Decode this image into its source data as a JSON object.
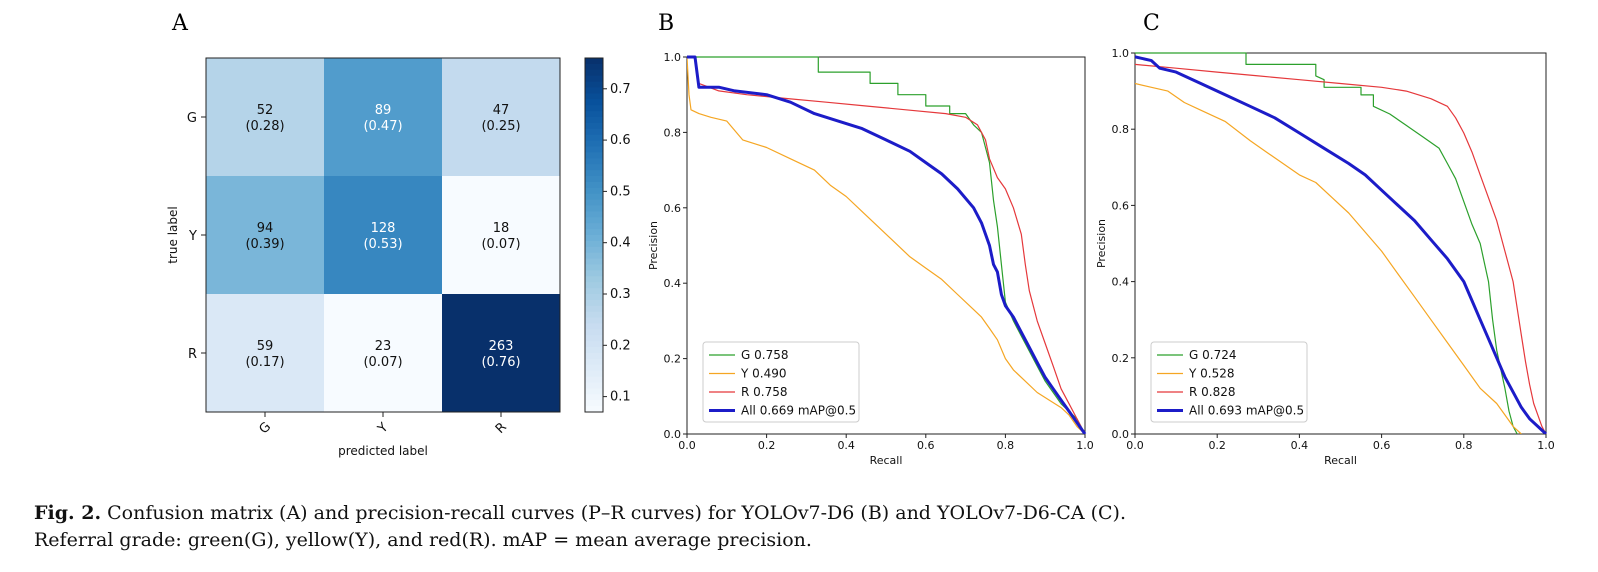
{
  "panels": {
    "a": "A",
    "b": "B",
    "c": "C"
  },
  "caption": {
    "label": "Fig. 2.",
    "text1": "Confusion matrix (A) and precision-recall curves (P–R curves) for YOLOv7-D6 (B) and YOLOv7-D6-CA (C).",
    "text2": "Referral grade: green(G), yellow(Y), and red(R). mAP = mean average precision."
  },
  "chart_data": [
    {
      "type": "heatmap",
      "panel": "A",
      "xlabel": "predicted label",
      "ylabel": "true label",
      "x_categories": [
        "G",
        "Y",
        "R"
      ],
      "y_categories": [
        "G",
        "Y",
        "R"
      ],
      "counts": [
        [
          52,
          89,
          47
        ],
        [
          94,
          128,
          18
        ],
        [
          59,
          23,
          263
        ]
      ],
      "fractions": [
        [
          "0.28",
          "0.47",
          "0.25"
        ],
        [
          "0.39",
          "0.53",
          "0.07"
        ],
        [
          "0.17",
          "0.07",
          "0.76"
        ]
      ],
      "colorbar": {
        "min": 0.07,
        "max": 0.76,
        "ticks": [
          "0.1",
          "0.2",
          "0.3",
          "0.4",
          "0.5",
          "0.6",
          "0.7"
        ],
        "colormap": "Blues"
      }
    },
    {
      "type": "line",
      "panel": "B",
      "xlabel": "Recall",
      "ylabel": "Precision",
      "xlim": [
        0,
        1
      ],
      "ylim": [
        0,
        1
      ],
      "x_ticks": [
        "0.0",
        "0.2",
        "0.4",
        "0.6",
        "0.8",
        "1.0"
      ],
      "y_ticks": [
        "0.0",
        "0.2",
        "0.4",
        "0.6",
        "0.8",
        "1.0"
      ],
      "legend_position": "bottom-left",
      "series": [
        {
          "name": "G 0.758",
          "color": "#2ca02c",
          "width": 1.2,
          "points": [
            [
              0,
              1.0
            ],
            [
              0.33,
              1.0
            ],
            [
              0.33,
              0.96
            ],
            [
              0.46,
              0.96
            ],
            [
              0.46,
              0.93
            ],
            [
              0.53,
              0.93
            ],
            [
              0.53,
              0.9
            ],
            [
              0.6,
              0.9
            ],
            [
              0.6,
              0.87
            ],
            [
              0.66,
              0.87
            ],
            [
              0.66,
              0.85
            ],
            [
              0.7,
              0.85
            ],
            [
              0.72,
              0.82
            ],
            [
              0.74,
              0.8
            ],
            [
              0.76,
              0.72
            ],
            [
              0.77,
              0.62
            ],
            [
              0.78,
              0.55
            ],
            [
              0.79,
              0.45
            ],
            [
              0.8,
              0.35
            ],
            [
              0.82,
              0.3
            ],
            [
              0.84,
              0.26
            ],
            [
              0.86,
              0.22
            ],
            [
              0.88,
              0.18
            ],
            [
              0.9,
              0.14
            ],
            [
              0.92,
              0.11
            ],
            [
              0.94,
              0.08
            ],
            [
              0.96,
              0.06
            ],
            [
              0.98,
              0.04
            ],
            [
              1.0,
              0.0
            ]
          ]
        },
        {
          "name": "Y 0.490",
          "color": "#f5a623",
          "width": 1.2,
          "points": [
            [
              0,
              1.0
            ],
            [
              0.005,
              0.9
            ],
            [
              0.01,
              0.86
            ],
            [
              0.03,
              0.85
            ],
            [
              0.06,
              0.84
            ],
            [
              0.1,
              0.83
            ],
            [
              0.14,
              0.78
            ],
            [
              0.2,
              0.76
            ],
            [
              0.26,
              0.73
            ],
            [
              0.32,
              0.7
            ],
            [
              0.36,
              0.66
            ],
            [
              0.4,
              0.63
            ],
            [
              0.44,
              0.59
            ],
            [
              0.48,
              0.55
            ],
            [
              0.52,
              0.51
            ],
            [
              0.56,
              0.47
            ],
            [
              0.6,
              0.44
            ],
            [
              0.64,
              0.41
            ],
            [
              0.68,
              0.37
            ],
            [
              0.72,
              0.33
            ],
            [
              0.74,
              0.31
            ],
            [
              0.76,
              0.28
            ],
            [
              0.78,
              0.25
            ],
            [
              0.8,
              0.2
            ],
            [
              0.82,
              0.17
            ],
            [
              0.85,
              0.14
            ],
            [
              0.88,
              0.11
            ],
            [
              0.91,
              0.09
            ],
            [
              0.94,
              0.07
            ],
            [
              0.96,
              0.05
            ],
            [
              0.98,
              0.02
            ],
            [
              1.0,
              0.0
            ]
          ]
        },
        {
          "name": "R 0.758",
          "color": "#e5383b",
          "width": 1.2,
          "points": [
            [
              0,
              1.0
            ],
            [
              0.02,
              1.0
            ],
            [
              0.03,
              0.93
            ],
            [
              0.08,
              0.91
            ],
            [
              0.15,
              0.9
            ],
            [
              0.25,
              0.89
            ],
            [
              0.35,
              0.88
            ],
            [
              0.45,
              0.87
            ],
            [
              0.55,
              0.86
            ],
            [
              0.65,
              0.85
            ],
            [
              0.7,
              0.84
            ],
            [
              0.73,
              0.82
            ],
            [
              0.75,
              0.78
            ],
            [
              0.76,
              0.73
            ],
            [
              0.78,
              0.68
            ],
            [
              0.8,
              0.65
            ],
            [
              0.82,
              0.6
            ],
            [
              0.84,
              0.53
            ],
            [
              0.85,
              0.45
            ],
            [
              0.86,
              0.38
            ],
            [
              0.88,
              0.3
            ],
            [
              0.9,
              0.24
            ],
            [
              0.92,
              0.18
            ],
            [
              0.94,
              0.12
            ],
            [
              0.96,
              0.08
            ],
            [
              0.98,
              0.04
            ],
            [
              1.0,
              0.0
            ]
          ]
        },
        {
          "name": "All 0.669 mAP@0.5",
          "color": "#1c1cc8",
          "width": 3,
          "points": [
            [
              0,
              1.0
            ],
            [
              0.02,
              1.0
            ],
            [
              0.03,
              0.92
            ],
            [
              0.08,
              0.92
            ],
            [
              0.12,
              0.91
            ],
            [
              0.2,
              0.9
            ],
            [
              0.26,
              0.88
            ],
            [
              0.32,
              0.85
            ],
            [
              0.38,
              0.83
            ],
            [
              0.44,
              0.81
            ],
            [
              0.5,
              0.78
            ],
            [
              0.56,
              0.75
            ],
            [
              0.6,
              0.72
            ],
            [
              0.64,
              0.69
            ],
            [
              0.68,
              0.65
            ],
            [
              0.72,
              0.6
            ],
            [
              0.74,
              0.56
            ],
            [
              0.76,
              0.5
            ],
            [
              0.77,
              0.45
            ],
            [
              0.78,
              0.43
            ],
            [
              0.79,
              0.37
            ],
            [
              0.8,
              0.34
            ],
            [
              0.82,
              0.31
            ],
            [
              0.84,
              0.27
            ],
            [
              0.86,
              0.23
            ],
            [
              0.88,
              0.19
            ],
            [
              0.9,
              0.15
            ],
            [
              0.92,
              0.12
            ],
            [
              0.94,
              0.09
            ],
            [
              0.96,
              0.06
            ],
            [
              0.98,
              0.03
            ],
            [
              1.0,
              0.0
            ]
          ]
        }
      ]
    },
    {
      "type": "line",
      "panel": "C",
      "xlabel": "Recall",
      "ylabel": "Precision",
      "xlim": [
        0,
        1
      ],
      "ylim": [
        0,
        1
      ],
      "x_ticks": [
        "0.0",
        "0.2",
        "0.4",
        "0.6",
        "0.8",
        "1.0"
      ],
      "y_ticks": [
        "0.0",
        "0.2",
        "0.4",
        "0.6",
        "0.8",
        "1.0"
      ],
      "legend_position": "bottom-left",
      "series": [
        {
          "name": "G 0.724",
          "color": "#2ca02c",
          "width": 1.2,
          "points": [
            [
              0,
              1.0
            ],
            [
              0.27,
              1.0
            ],
            [
              0.27,
              0.97
            ],
            [
              0.44,
              0.97
            ],
            [
              0.44,
              0.94
            ],
            [
              0.46,
              0.93
            ],
            [
              0.46,
              0.91
            ],
            [
              0.55,
              0.91
            ],
            [
              0.55,
              0.89
            ],
            [
              0.58,
              0.89
            ],
            [
              0.58,
              0.86
            ],
            [
              0.62,
              0.84
            ],
            [
              0.66,
              0.81
            ],
            [
              0.7,
              0.78
            ],
            [
              0.74,
              0.75
            ],
            [
              0.76,
              0.71
            ],
            [
              0.78,
              0.67
            ],
            [
              0.8,
              0.61
            ],
            [
              0.82,
              0.55
            ],
            [
              0.84,
              0.5
            ],
            [
              0.85,
              0.45
            ],
            [
              0.86,
              0.4
            ],
            [
              0.87,
              0.3
            ],
            [
              0.88,
              0.22
            ],
            [
              0.89,
              0.17
            ],
            [
              0.9,
              0.12
            ],
            [
              0.91,
              0.06
            ],
            [
              0.92,
              0.02
            ],
            [
              0.93,
              0.0
            ]
          ]
        },
        {
          "name": "Y 0.528",
          "color": "#f5a623",
          "width": 1.2,
          "points": [
            [
              0,
              0.92
            ],
            [
              0.04,
              0.91
            ],
            [
              0.08,
              0.9
            ],
            [
              0.12,
              0.87
            ],
            [
              0.16,
              0.85
            ],
            [
              0.22,
              0.82
            ],
            [
              0.28,
              0.77
            ],
            [
              0.32,
              0.74
            ],
            [
              0.36,
              0.71
            ],
            [
              0.4,
              0.68
            ],
            [
              0.44,
              0.66
            ],
            [
              0.48,
              0.62
            ],
            [
              0.52,
              0.58
            ],
            [
              0.56,
              0.53
            ],
            [
              0.6,
              0.48
            ],
            [
              0.64,
              0.42
            ],
            [
              0.68,
              0.36
            ],
            [
              0.72,
              0.3
            ],
            [
              0.76,
              0.24
            ],
            [
              0.8,
              0.18
            ],
            [
              0.84,
              0.12
            ],
            [
              0.88,
              0.08
            ],
            [
              0.9,
              0.05
            ],
            [
              0.92,
              0.02
            ],
            [
              0.94,
              0.0
            ]
          ]
        },
        {
          "name": "R 0.828",
          "color": "#e5383b",
          "width": 1.2,
          "points": [
            [
              0,
              0.97
            ],
            [
              0.1,
              0.96
            ],
            [
              0.2,
              0.95
            ],
            [
              0.3,
              0.94
            ],
            [
              0.4,
              0.93
            ],
            [
              0.5,
              0.92
            ],
            [
              0.6,
              0.91
            ],
            [
              0.66,
              0.9
            ],
            [
              0.72,
              0.88
            ],
            [
              0.76,
              0.86
            ],
            [
              0.78,
              0.83
            ],
            [
              0.8,
              0.79
            ],
            [
              0.82,
              0.74
            ],
            [
              0.84,
              0.68
            ],
            [
              0.86,
              0.62
            ],
            [
              0.88,
              0.56
            ],
            [
              0.9,
              0.48
            ],
            [
              0.92,
              0.4
            ],
            [
              0.93,
              0.33
            ],
            [
              0.94,
              0.26
            ],
            [
              0.95,
              0.19
            ],
            [
              0.96,
              0.13
            ],
            [
              0.97,
              0.08
            ],
            [
              0.98,
              0.05
            ],
            [
              0.99,
              0.02
            ],
            [
              1.0,
              0.0
            ]
          ]
        },
        {
          "name": "All 0.693 mAP@0.5",
          "color": "#1c1cc8",
          "width": 3,
          "points": [
            [
              0,
              0.99
            ],
            [
              0.04,
              0.98
            ],
            [
              0.06,
              0.96
            ],
            [
              0.1,
              0.95
            ],
            [
              0.16,
              0.92
            ],
            [
              0.22,
              0.89
            ],
            [
              0.28,
              0.86
            ],
            [
              0.34,
              0.83
            ],
            [
              0.4,
              0.79
            ],
            [
              0.46,
              0.75
            ],
            [
              0.52,
              0.71
            ],
            [
              0.56,
              0.68
            ],
            [
              0.6,
              0.64
            ],
            [
              0.64,
              0.6
            ],
            [
              0.68,
              0.56
            ],
            [
              0.72,
              0.51
            ],
            [
              0.76,
              0.46
            ],
            [
              0.8,
              0.4
            ],
            [
              0.82,
              0.35
            ],
            [
              0.84,
              0.3
            ],
            [
              0.86,
              0.25
            ],
            [
              0.88,
              0.2
            ],
            [
              0.9,
              0.15
            ],
            [
              0.92,
              0.11
            ],
            [
              0.94,
              0.07
            ],
            [
              0.96,
              0.04
            ],
            [
              0.98,
              0.02
            ],
            [
              1.0,
              0.0
            ]
          ]
        }
      ]
    }
  ]
}
